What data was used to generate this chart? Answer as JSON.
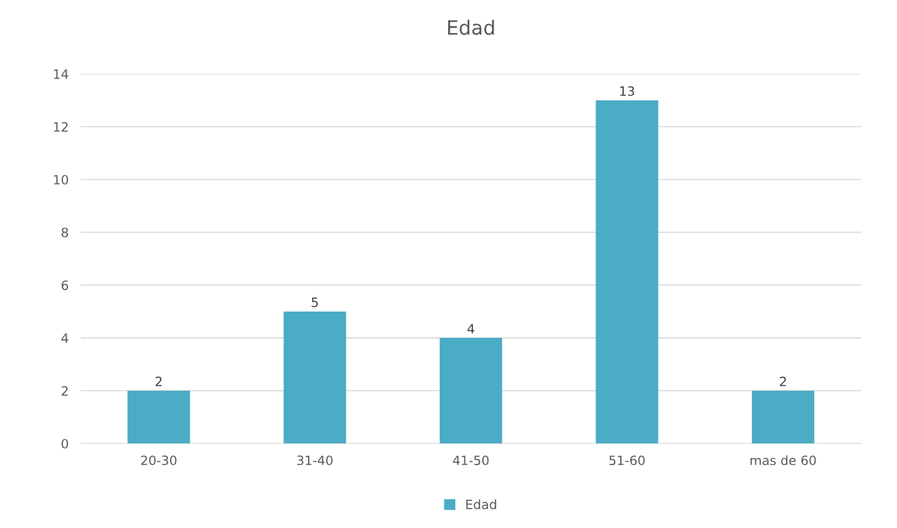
{
  "chart_data": {
    "type": "bar",
    "title": "Edad",
    "categories": [
      "20-30",
      "31-40",
      "41-50",
      "51-60",
      "mas de 60"
    ],
    "series": [
      {
        "name": "Edad",
        "color": "#4bacc6",
        "values": [
          2,
          5,
          4,
          13,
          2
        ]
      }
    ],
    "ylim": [
      0,
      14
    ],
    "yticks": [
      0,
      2,
      4,
      6,
      8,
      10,
      12,
      14
    ],
    "grid": "y",
    "legend": "bottom",
    "data_labels": true
  }
}
